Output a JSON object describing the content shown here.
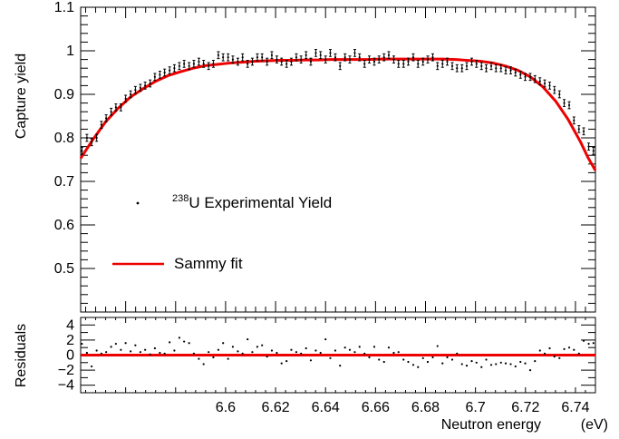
{
  "chart_data": [
    {
      "type": "scatter",
      "panel": "main",
      "xlabel": "Neutron energy",
      "xunit": "(eV)",
      "ylabel": "Capture yield",
      "xlim": [
        6.542,
        6.748
      ],
      "ylim": [
        0.4,
        1.1
      ],
      "x_ticks": [
        "6.6",
        "6.62",
        "6.64",
        "6.66",
        "6.68",
        "6.7",
        "6.72",
        "6.74"
      ],
      "y_ticks": [
        "0.5",
        "0.6",
        "0.7",
        "0.8",
        "0.9",
        "1",
        "1.1"
      ],
      "legend": {
        "position": "center-left",
        "items": [
          {
            "label_pre": "",
            "label_sup": "238",
            "label_post": "U Experimental Yield",
            "marker": "point"
          },
          {
            "label_pre": "Sammy fit",
            "label_sup": "",
            "label_post": "",
            "marker": "line",
            "color": "#ee0000"
          }
        ]
      },
      "series": [
        {
          "name": "238U Experimental Yield",
          "color": "#000000",
          "error": 0.008,
          "x": [
            6.5425,
            6.5445,
            6.5464,
            6.5484,
            6.5503,
            6.5522,
            6.5542,
            6.5561,
            6.5581,
            6.56,
            6.562,
            6.5639,
            6.5659,
            6.5678,
            6.5698,
            6.5717,
            6.5737,
            6.5756,
            6.5776,
            6.5795,
            6.5815,
            6.5834,
            6.5854,
            6.5873,
            6.5893,
            6.5912,
            6.5932,
            6.5951,
            6.5971,
            6.599,
            6.601,
            6.6029,
            6.6049,
            6.6068,
            6.6088,
            6.6107,
            6.6127,
            6.6146,
            6.6166,
            6.6185,
            6.6205,
            6.6224,
            6.6244,
            6.6263,
            6.6283,
            6.6302,
            6.6322,
            6.6341,
            6.6361,
            6.638,
            6.64,
            6.6419,
            6.6439,
            6.6458,
            6.6478,
            6.6497,
            6.6517,
            6.6536,
            6.6556,
            6.6575,
            6.6595,
            6.6614,
            6.6634,
            6.6653,
            6.6673,
            6.6692,
            6.6712,
            6.6731,
            6.6751,
            6.677,
            6.679,
            6.6809,
            6.6829,
            6.6848,
            6.6868,
            6.6887,
            6.6907,
            6.6926,
            6.6946,
            6.6965,
            6.6985,
            6.7004,
            6.7024,
            6.7043,
            6.7063,
            6.7082,
            6.7102,
            6.7121,
            6.7141,
            6.716,
            6.718,
            6.7199,
            6.7219,
            6.7238,
            6.7258,
            6.7277,
            6.7297,
            6.7316,
            6.7336,
            6.7355,
            6.7375,
            6.7394,
            6.7414,
            6.7433,
            6.7453,
            6.7472
          ],
          "y": [
            0.77,
            0.8,
            0.79,
            0.8,
            0.83,
            0.845,
            0.86,
            0.87,
            0.87,
            0.89,
            0.9,
            0.91,
            0.915,
            0.92,
            0.925,
            0.94,
            0.945,
            0.95,
            0.955,
            0.96,
            0.965,
            0.97,
            0.965,
            0.97,
            0.975,
            0.97,
            0.965,
            0.97,
            0.99,
            0.985,
            0.985,
            0.98,
            0.975,
            0.985,
            0.97,
            0.975,
            0.985,
            0.985,
            0.975,
            0.99,
            0.98,
            0.975,
            0.97,
            0.975,
            0.985,
            0.98,
            0.99,
            0.975,
            0.995,
            0.99,
            0.98,
            0.995,
            0.985,
            0.965,
            0.985,
            0.98,
            0.995,
            0.985,
            0.97,
            0.98,
            0.975,
            0.98,
            0.985,
            0.99,
            0.98,
            0.97,
            0.97,
            0.975,
            0.985,
            0.97,
            0.975,
            0.98,
            0.985,
            0.965,
            0.97,
            0.975,
            0.965,
            0.96,
            0.96,
            0.965,
            0.975,
            0.97,
            0.965,
            0.96,
            0.965,
            0.96,
            0.96,
            0.955,
            0.955,
            0.95,
            0.945,
            0.94,
            0.94,
            0.935,
            0.93,
            0.925,
            0.92,
            0.91,
            0.9,
            0.88,
            0.875,
            0.84,
            0.82,
            0.815,
            0.78,
            0.77
          ]
        },
        {
          "name": "Sammy fit",
          "color": "#ee0000",
          "kind": "line",
          "x": [
            6.542,
            6.547,
            6.552,
            6.557,
            6.562,
            6.567,
            6.572,
            6.577,
            6.582,
            6.587,
            6.592,
            6.597,
            6.602,
            6.607,
            6.612,
            6.617,
            6.622,
            6.627,
            6.632,
            6.637,
            6.642,
            6.647,
            6.652,
            6.657,
            6.662,
            6.667,
            6.672,
            6.677,
            6.682,
            6.687,
            6.692,
            6.697,
            6.702,
            6.707,
            6.712,
            6.717,
            6.722,
            6.727,
            6.732,
            6.737,
            6.742,
            6.745,
            6.748
          ],
          "y": [
            0.753,
            0.797,
            0.837,
            0.868,
            0.894,
            0.913,
            0.93,
            0.943,
            0.952,
            0.96,
            0.966,
            0.969,
            0.972,
            0.974,
            0.976,
            0.977,
            0.978,
            0.978,
            0.979,
            0.979,
            0.98,
            0.98,
            0.98,
            0.98,
            0.981,
            0.981,
            0.981,
            0.981,
            0.981,
            0.981,
            0.98,
            0.978,
            0.976,
            0.972,
            0.965,
            0.955,
            0.94,
            0.917,
            0.885,
            0.843,
            0.791,
            0.755,
            0.725
          ]
        }
      ]
    },
    {
      "type": "scatter",
      "panel": "residuals",
      "ylabel": "Residuals",
      "xlim": [
        6.542,
        6.748
      ],
      "ylim": [
        -5,
        5
      ],
      "y_ticks": [
        "−4",
        "−2",
        "0",
        "2",
        "4"
      ],
      "series": [
        {
          "name": "Residuals",
          "color": "#000000",
          "x": [
            6.5425,
            6.5445,
            6.5464,
            6.5484,
            6.5503,
            6.5522,
            6.5542,
            6.5561,
            6.5581,
            6.56,
            6.562,
            6.5639,
            6.5659,
            6.5678,
            6.5698,
            6.5717,
            6.5737,
            6.5756,
            6.5776,
            6.5795,
            6.5815,
            6.5834,
            6.5854,
            6.5873,
            6.5893,
            6.5912,
            6.5932,
            6.5951,
            6.5971,
            6.599,
            6.601,
            6.6029,
            6.6049,
            6.6068,
            6.6088,
            6.6107,
            6.6127,
            6.6146,
            6.6166,
            6.6185,
            6.6205,
            6.6224,
            6.6244,
            6.6263,
            6.6283,
            6.6302,
            6.6322,
            6.6341,
            6.6361,
            6.638,
            6.64,
            6.6419,
            6.6439,
            6.6458,
            6.6478,
            6.6497,
            6.6517,
            6.6536,
            6.6556,
            6.6575,
            6.6595,
            6.6614,
            6.6634,
            6.6653,
            6.6673,
            6.6692,
            6.6712,
            6.6731,
            6.6751,
            6.677,
            6.679,
            6.6809,
            6.6829,
            6.6848,
            6.6868,
            6.6887,
            6.6907,
            6.6926,
            6.6946,
            6.6965,
            6.6985,
            6.7004,
            6.7024,
            6.7043,
            6.7063,
            6.7082,
            6.7102,
            6.7121,
            6.7141,
            6.716,
            6.718,
            6.7199,
            6.7219,
            6.7238,
            6.7258,
            6.7277,
            6.7297,
            6.7316,
            6.7336,
            6.7355,
            6.7375,
            6.7394,
            6.7414,
            6.7433,
            6.7453,
            6.7472
          ],
          "y": [
            1.5,
            0.3,
            -1.5,
            0.6,
            0.2,
            0.4,
            1.1,
            1.5,
            0.7,
            1.6,
            0.5,
            1.3,
            0.4,
            0.7,
            0.1,
            0.9,
            0.3,
            0.2,
            1.7,
            0.6,
            2.3,
            1.8,
            1.6,
            0.2,
            -0.5,
            -1.2,
            0.4,
            -0.3,
            0.7,
            1.6,
            -0.5,
            1.1,
            0.5,
            0.2,
            2.1,
            0.4,
            1.1,
            1.3,
            -0.2,
            0.6,
            0.3,
            -1.1,
            -0.8,
            0.7,
            0.4,
            0.2,
            0.9,
            -0.7,
            0.6,
            0.3,
            2.1,
            -0.4,
            0.6,
            -1.4,
            1.0,
            0.7,
            0.4,
            1.1,
            0.2,
            -0.3,
            1.1,
            -0.6,
            -0.9,
            1.0,
            0.3,
            0.4,
            -0.6,
            -0.9,
            -1.3,
            -1.6,
            -0.4,
            -0.9,
            -0.3,
            1.2,
            -1.1,
            -0.3,
            -0.6,
            0.2,
            -1.2,
            -1.4,
            -0.8,
            -1.0,
            -1.6,
            -0.6,
            -1.3,
            -1.2,
            -1.0,
            -1.1,
            -1.2,
            -1.5,
            -0.9,
            -1.1,
            -2.0,
            -0.8,
            0.6,
            0.2,
            0.9,
            -0.2,
            -0.4,
            0.8,
            1.0,
            0.7,
            0.2,
            1.9,
            1.5,
            1.6
          ]
        },
        {
          "name": "Zero line",
          "color": "#ee0000",
          "kind": "line",
          "y_constant": 0
        }
      ]
    }
  ]
}
